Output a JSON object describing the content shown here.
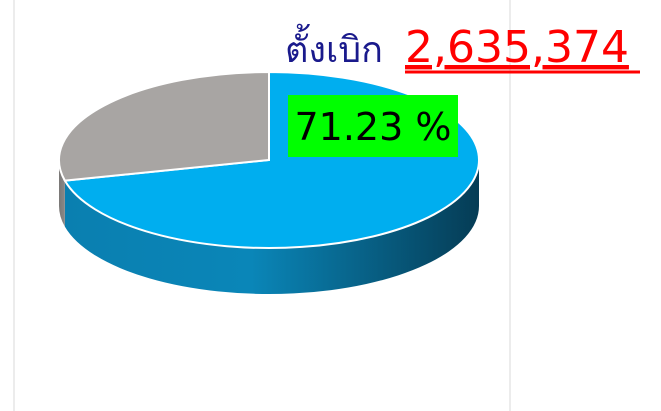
{
  "chart_data": {
    "type": "pie",
    "title": "ตั้งเบิก",
    "annotations": [
      "2,635,374"
    ],
    "values": [
      71.23,
      28.77
    ],
    "value_labels": [
      "71.23 %",
      null
    ],
    "colors": [
      "#00aeef",
      "#a8a5a3"
    ]
  }
}
